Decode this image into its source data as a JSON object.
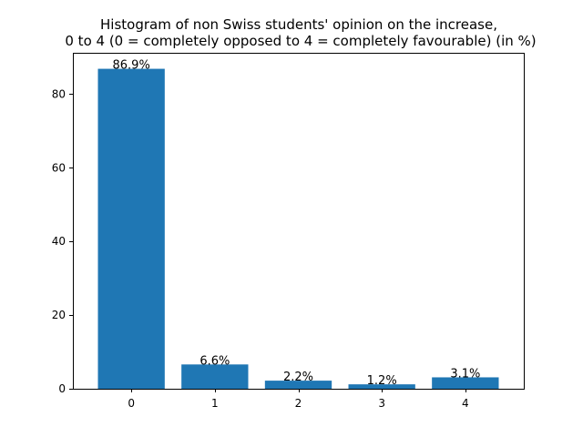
{
  "chart_data": {
    "type": "bar",
    "title_lines": [
      "Histogram of non Swiss students' opinion on the increase,",
      "0 to 4 (0 = completely opposed to 4 = completely favourable) (in %)"
    ],
    "xlabel": "",
    "ylabel": "",
    "categories": [
      "0",
      "1",
      "2",
      "3",
      "4"
    ],
    "values": [
      86.9,
      6.6,
      2.2,
      1.2,
      3.1
    ],
    "data_labels": [
      "86.9%",
      "6.6%",
      "2.2%",
      "1.2%",
      "3.1%"
    ],
    "ylim": [
      0,
      91.245
    ],
    "yticks": [
      0,
      20,
      40,
      60,
      80
    ],
    "ytick_labels": [
      "0",
      "20",
      "40",
      "60",
      "80"
    ],
    "bar_color": "#1f77b4",
    "grid": false,
    "legend": "none"
  }
}
